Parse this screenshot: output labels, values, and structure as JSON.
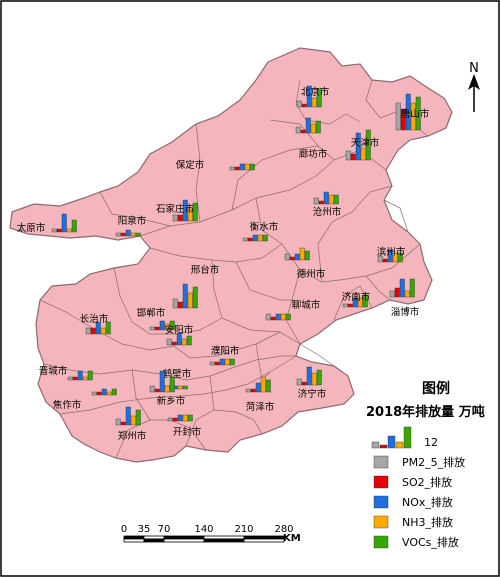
{
  "colors": {
    "land": "#f4b6bc",
    "land_stroke": "#8c6a6e",
    "pm25": "#a6a6a6",
    "so2": "#e60000",
    "nox": "#1f6fe0",
    "nh3": "#ffaa00",
    "vocs": "#38a800",
    "frame": "#000000"
  },
  "north_arrow": {
    "label": "N",
    "icon": "north-arrow-icon"
  },
  "legend": {
    "title": "图例",
    "subtitle": "2018年排放量 万吨",
    "scale_sample_value": "12",
    "items": [
      {
        "key": "pm25",
        "label": "PM2_5_排放"
      },
      {
        "key": "so2",
        "label": "SO2_排放"
      },
      {
        "key": "nox",
        "label": "NOx_排放"
      },
      {
        "key": "nh3",
        "label": "NH3_排放"
      },
      {
        "key": "vocs",
        "label": "VOCs_排放"
      }
    ]
  },
  "scale_bar": {
    "ticks": [
      "0",
      "35",
      "70",
      "140",
      "210",
      "280"
    ],
    "unit": "KM"
  },
  "cities": [
    {
      "name": "北京市",
      "values": [
        2,
        1,
        7,
        3,
        6
      ]
    },
    {
      "name": "唐山市",
      "values": [
        9,
        7,
        12,
        9,
        11
      ]
    },
    {
      "name": "天津市",
      "values": [
        3,
        2,
        9,
        4,
        10
      ]
    },
    {
      "name": "廊坊市",
      "values": [
        2,
        1,
        5,
        3,
        4
      ]
    },
    {
      "name": "保定市",
      "values": [
        1,
        1,
        2,
        2,
        2
      ]
    },
    {
      "name": "沧州市",
      "values": [
        2,
        1,
        4,
        3,
        3
      ]
    },
    {
      "name": "石家庄市",
      "values": [
        2,
        2,
        7,
        4,
        6
      ]
    },
    {
      "name": "太原市",
      "values": [
        1,
        1,
        6,
        1,
        4
      ]
    },
    {
      "name": "阳泉市",
      "values": [
        1,
        1,
        2,
        1,
        1
      ]
    },
    {
      "name": "衡水市",
      "values": [
        1,
        1,
        2,
        2,
        2
      ]
    },
    {
      "name": "滨州市",
      "values": [
        2,
        1,
        4,
        3,
        3
      ]
    },
    {
      "name": "德州市",
      "values": [
        2,
        1,
        2,
        4,
        3
      ]
    },
    {
      "name": "邢台市",
      "values": [
        3,
        2,
        8,
        5,
        7
      ]
    },
    {
      "name": "淄博市",
      "values": [
        2,
        3,
        6,
        2,
        6
      ]
    },
    {
      "name": "长治市",
      "values": [
        2,
        2,
        4,
        2,
        4
      ]
    },
    {
      "name": "聊城市",
      "values": [
        2,
        1,
        2,
        2,
        2
      ]
    },
    {
      "name": "济南市",
      "values": [
        1,
        1,
        3,
        3,
        4
      ]
    },
    {
      "name": "邯郸市",
      "values": [
        1,
        1,
        3,
        2,
        3
      ]
    },
    {
      "name": "安阳市",
      "values": [
        2,
        1,
        4,
        2,
        3
      ]
    },
    {
      "name": "濮阳市",
      "values": [
        1,
        1,
        2,
        2,
        2
      ]
    },
    {
      "name": "晋城市",
      "values": [
        1,
        1,
        3,
        1,
        3
      ]
    },
    {
      "name": "鹤壁市",
      "values": [
        1,
        1,
        1,
        1,
        1
      ]
    },
    {
      "name": "焦作市",
      "values": [
        1,
        1,
        2,
        1,
        2
      ]
    },
    {
      "name": "新乡市",
      "values": [
        2,
        1,
        7,
        2,
        5
      ]
    },
    {
      "name": "济宁市",
      "values": [
        2,
        1,
        6,
        4,
        5
      ]
    },
    {
      "name": "菏泽市",
      "values": [
        1,
        1,
        3,
        5,
        4
      ]
    },
    {
      "name": "开封市",
      "values": [
        1,
        1,
        2,
        2,
        2
      ]
    },
    {
      "name": "郑州市",
      "values": [
        2,
        1,
        6,
        3,
        5
      ]
    }
  ]
}
